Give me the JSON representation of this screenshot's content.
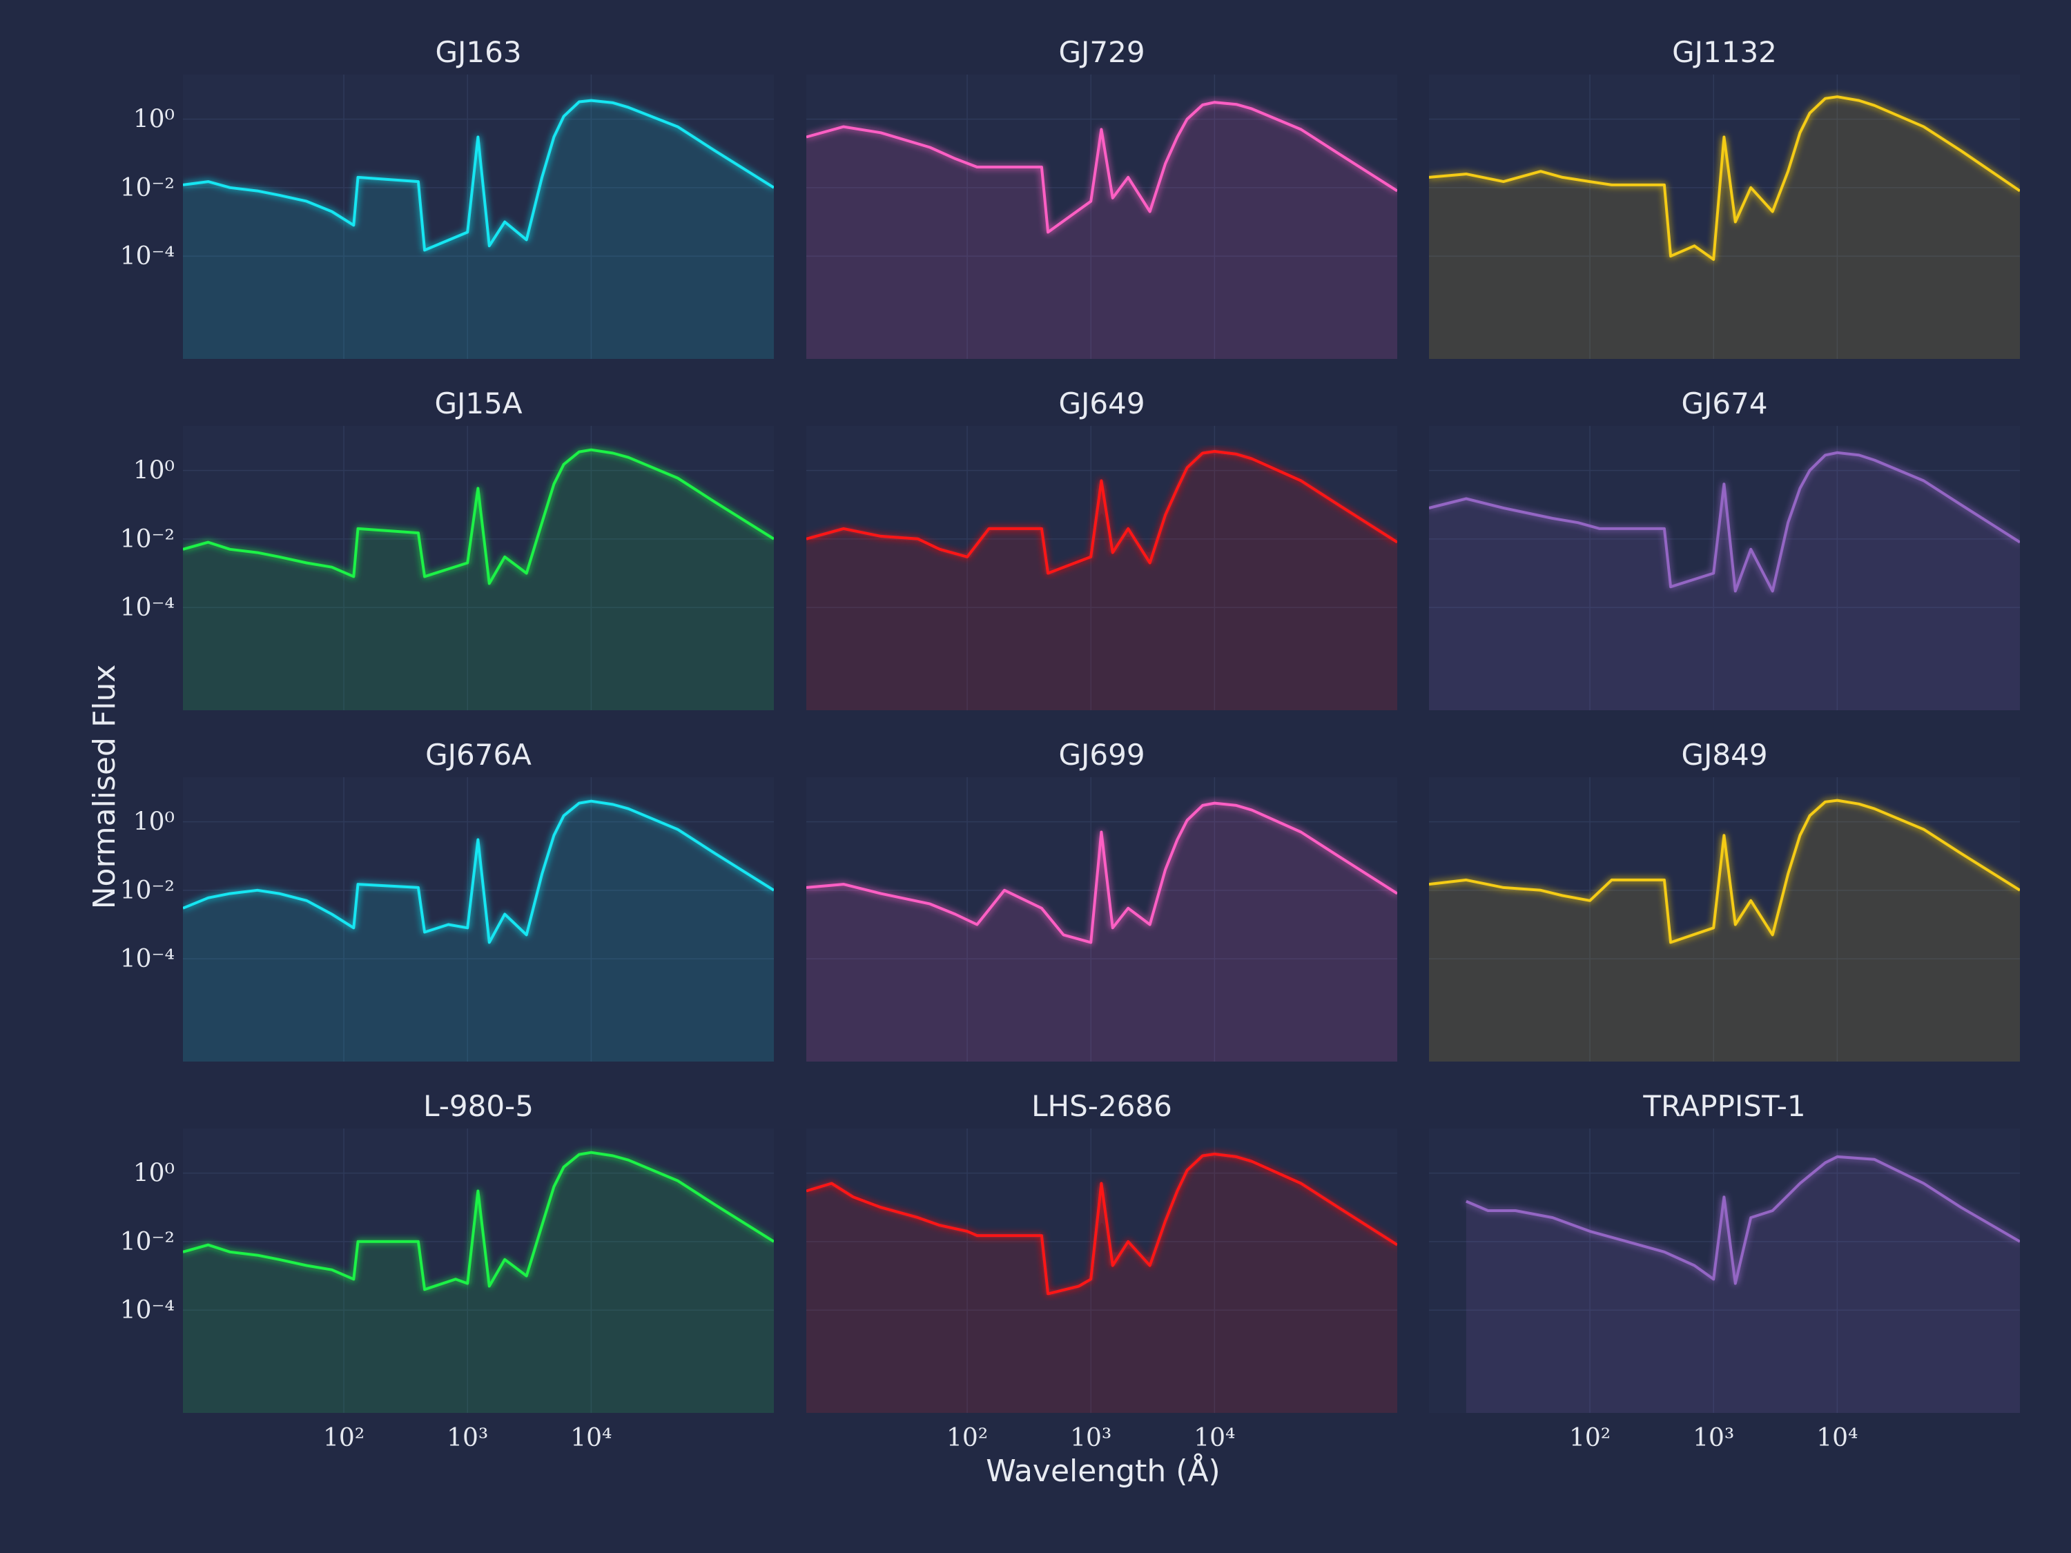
{
  "chart_data": {
    "type": "line",
    "layout": "4x3 small multiples",
    "xlabel": "Wavelength (Å)",
    "ylabel": "Normalised Flux",
    "x_scale": "log",
    "y_scale": "log",
    "xlim": [
      5,
      300000
    ],
    "ylim": [
      1e-07,
      20
    ],
    "x_ticks": [
      {
        "value": 100,
        "label": "10²"
      },
      {
        "value": 1000,
        "label": "10³"
      },
      {
        "value": 10000,
        "label": "10⁴"
      }
    ],
    "y_ticks": [
      {
        "value": 1,
        "label": "10⁰"
      },
      {
        "value": 0.01,
        "label": "10⁻²"
      },
      {
        "value": 0.0001,
        "label": "10⁻⁴"
      }
    ],
    "grid": true,
    "panels": [
      {
        "name": "GJ163",
        "color": "#19e6f2",
        "x": [
          5,
          8,
          12,
          20,
          30,
          50,
          80,
          120,
          130,
          400,
          450,
          1000,
          1216,
          1500,
          2000,
          3000,
          4000,
          5000,
          6000,
          8000,
          10000,
          15000,
          20000,
          50000,
          100000,
          300000
        ],
        "y": [
          0.012,
          0.015,
          0.01,
          0.008,
          0.006,
          0.004,
          0.002,
          0.0008,
          0.02,
          0.015,
          0.00015,
          0.0005,
          0.3,
          0.0002,
          0.001,
          0.0003,
          0.02,
          0.3,
          1.2,
          3.2,
          3.5,
          3.0,
          2.2,
          0.6,
          0.12,
          0.01
        ]
      },
      {
        "name": "GJ729",
        "color": "#ff5ec4",
        "x": [
          5,
          10,
          20,
          50,
          80,
          120,
          400,
          450,
          1000,
          1216,
          1500,
          2000,
          3000,
          4000,
          5000,
          6000,
          8000,
          10000,
          15000,
          20000,
          50000,
          100000,
          300000
        ],
        "y": [
          0.3,
          0.6,
          0.4,
          0.15,
          0.07,
          0.04,
          0.04,
          0.0005,
          0.004,
          0.5,
          0.005,
          0.02,
          0.002,
          0.05,
          0.3,
          1.0,
          2.6,
          3.1,
          2.7,
          2.0,
          0.5,
          0.1,
          0.008
        ]
      },
      {
        "name": "GJ1132",
        "color": "#f5cc12",
        "x": [
          5,
          10,
          20,
          40,
          60,
          100,
          150,
          400,
          450,
          700,
          1000,
          1216,
          1500,
          2000,
          3000,
          4000,
          5000,
          6000,
          8000,
          10000,
          15000,
          20000,
          50000,
          100000,
          300000
        ],
        "y": [
          0.02,
          0.025,
          0.015,
          0.03,
          0.02,
          0.015,
          0.012,
          0.012,
          0.0001,
          0.0002,
          8e-05,
          0.3,
          0.001,
          0.01,
          0.002,
          0.03,
          0.4,
          1.5,
          4.0,
          4.5,
          3.5,
          2.5,
          0.6,
          0.12,
          0.008
        ]
      },
      {
        "name": "GJ15A",
        "color": "#1ff246",
        "x": [
          5,
          8,
          12,
          20,
          30,
          50,
          80,
          120,
          130,
          400,
          450,
          1000,
          1216,
          1500,
          2000,
          3000,
          4000,
          5000,
          6000,
          8000,
          10000,
          15000,
          20000,
          50000,
          100000,
          300000
        ],
        "y": [
          0.005,
          0.008,
          0.005,
          0.004,
          0.003,
          0.002,
          0.0015,
          0.0008,
          0.02,
          0.015,
          0.0008,
          0.002,
          0.3,
          0.0005,
          0.003,
          0.001,
          0.03,
          0.4,
          1.5,
          3.5,
          4.0,
          3.2,
          2.4,
          0.6,
          0.12,
          0.01
        ]
      },
      {
        "name": "GJ649",
        "color": "#ff1717",
        "x": [
          5,
          10,
          20,
          40,
          60,
          100,
          150,
          400,
          450,
          1000,
          1216,
          1500,
          2000,
          3000,
          4000,
          5000,
          6000,
          8000,
          10000,
          15000,
          20000,
          50000,
          100000,
          300000
        ],
        "y": [
          0.01,
          0.02,
          0.012,
          0.01,
          0.005,
          0.003,
          0.02,
          0.02,
          0.001,
          0.003,
          0.5,
          0.004,
          0.02,
          0.002,
          0.05,
          0.3,
          1.2,
          3.2,
          3.6,
          3.0,
          2.2,
          0.5,
          0.1,
          0.008
        ]
      },
      {
        "name": "GJ674",
        "color": "#9466c4",
        "x": [
          5,
          10,
          20,
          50,
          80,
          120,
          400,
          450,
          1000,
          1216,
          1500,
          2000,
          3000,
          4000,
          5000,
          6000,
          8000,
          10000,
          15000,
          20000,
          50000,
          100000,
          300000
        ],
        "y": [
          0.08,
          0.15,
          0.08,
          0.04,
          0.03,
          0.02,
          0.02,
          0.0004,
          0.001,
          0.4,
          0.0003,
          0.005,
          0.0003,
          0.03,
          0.3,
          1.0,
          2.8,
          3.3,
          2.8,
          2.0,
          0.5,
          0.1,
          0.008
        ]
      },
      {
        "name": "GJ676A",
        "color": "#19e6f2",
        "x": [
          5,
          8,
          12,
          20,
          30,
          50,
          80,
          120,
          130,
          400,
          450,
          700,
          1000,
          1216,
          1500,
          2000,
          3000,
          4000,
          5000,
          6000,
          8000,
          10000,
          15000,
          20000,
          50000,
          100000,
          300000
        ],
        "y": [
          0.003,
          0.006,
          0.008,
          0.01,
          0.008,
          0.005,
          0.002,
          0.0008,
          0.015,
          0.012,
          0.0006,
          0.001,
          0.0008,
          0.3,
          0.0003,
          0.002,
          0.0005,
          0.03,
          0.4,
          1.5,
          3.5,
          4.0,
          3.2,
          2.4,
          0.6,
          0.12,
          0.01
        ]
      },
      {
        "name": "GJ699",
        "color": "#ff5ec4",
        "x": [
          5,
          10,
          20,
          50,
          80,
          120,
          200,
          400,
          600,
          1000,
          1216,
          1500,
          2000,
          3000,
          4000,
          5000,
          6000,
          8000,
          10000,
          15000,
          20000,
          50000,
          100000,
          300000
        ],
        "y": [
          0.012,
          0.015,
          0.008,
          0.004,
          0.002,
          0.001,
          0.01,
          0.003,
          0.0005,
          0.0003,
          0.5,
          0.0008,
          0.003,
          0.001,
          0.04,
          0.3,
          1.1,
          3.0,
          3.5,
          3.0,
          2.2,
          0.5,
          0.1,
          0.008
        ]
      },
      {
        "name": "GJ849",
        "color": "#f5cc12",
        "x": [
          5,
          10,
          20,
          40,
          60,
          100,
          150,
          400,
          450,
          1000,
          1216,
          1500,
          2000,
          3000,
          4000,
          5000,
          6000,
          8000,
          10000,
          15000,
          20000,
          50000,
          100000,
          300000
        ],
        "y": [
          0.015,
          0.02,
          0.012,
          0.01,
          0.007,
          0.005,
          0.02,
          0.02,
          0.0003,
          0.0008,
          0.4,
          0.001,
          0.005,
          0.0005,
          0.03,
          0.4,
          1.5,
          3.8,
          4.2,
          3.3,
          2.4,
          0.6,
          0.12,
          0.01
        ]
      },
      {
        "name": "L-980-5",
        "color": "#1ff246",
        "x": [
          5,
          8,
          12,
          20,
          30,
          50,
          80,
          120,
          130,
          400,
          450,
          800,
          1000,
          1216,
          1500,
          2000,
          3000,
          4000,
          5000,
          6000,
          8000,
          10000,
          15000,
          20000,
          50000,
          100000,
          300000
        ],
        "y": [
          0.005,
          0.008,
          0.005,
          0.004,
          0.003,
          0.002,
          0.0015,
          0.0008,
          0.01,
          0.01,
          0.0004,
          0.0008,
          0.0006,
          0.3,
          0.0005,
          0.003,
          0.001,
          0.03,
          0.4,
          1.5,
          3.5,
          4.0,
          3.2,
          2.4,
          0.6,
          0.12,
          0.01
        ]
      },
      {
        "name": "LHS-2686",
        "color": "#ff1717",
        "x": [
          5,
          8,
          12,
          20,
          40,
          60,
          100,
          120,
          400,
          450,
          800,
          1000,
          1216,
          1500,
          2000,
          3000,
          4000,
          5000,
          6000,
          8000,
          10000,
          15000,
          20000,
          50000,
          100000,
          300000
        ],
        "y": [
          0.3,
          0.5,
          0.2,
          0.1,
          0.05,
          0.03,
          0.02,
          0.015,
          0.015,
          0.0003,
          0.0005,
          0.0008,
          0.5,
          0.002,
          0.01,
          0.002,
          0.04,
          0.3,
          1.2,
          3.2,
          3.6,
          3.0,
          2.2,
          0.5,
          0.1,
          0.008
        ]
      },
      {
        "name": "TRAPPIST-1",
        "color": "#9466c4",
        "x": [
          10,
          15,
          25,
          50,
          100,
          200,
          400,
          700,
          1000,
          1216,
          1500,
          2000,
          3000,
          5000,
          8000,
          10000,
          20000,
          50000,
          100000,
          300000
        ],
        "y": [
          0.15,
          0.08,
          0.08,
          0.05,
          0.02,
          0.01,
          0.005,
          0.002,
          0.0008,
          0.2,
          0.0006,
          0.05,
          0.08,
          0.5,
          2.0,
          3.0,
          2.5,
          0.5,
          0.1,
          0.01
        ]
      }
    ]
  }
}
